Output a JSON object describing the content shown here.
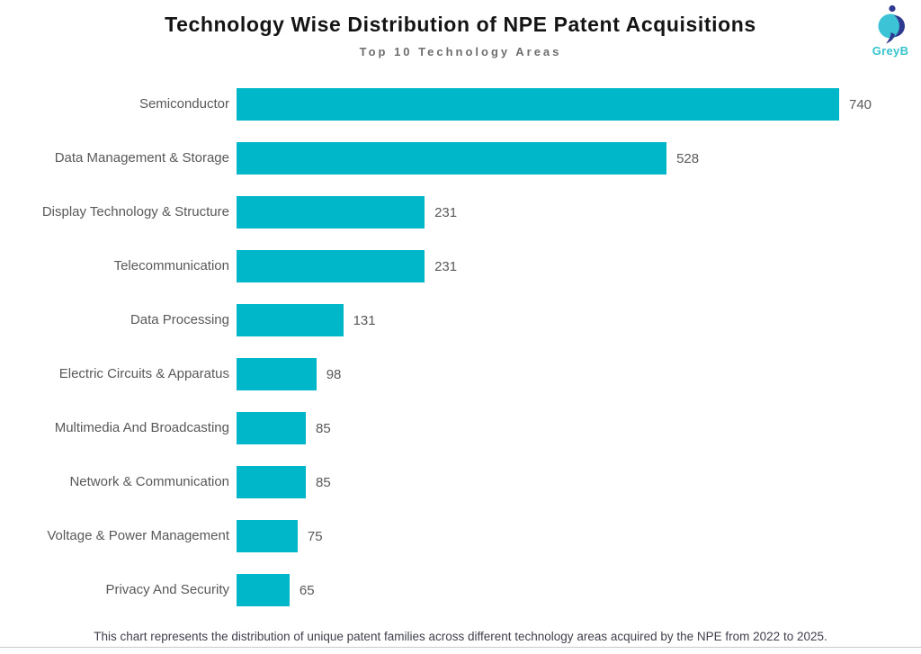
{
  "header": {
    "title": "Technology Wise Distribution of NPE Patent Acquisitions",
    "subtitle": "Top 10 Technology Areas",
    "logo_text": "GreyB"
  },
  "chart_data": {
    "type": "bar",
    "orientation": "horizontal",
    "title": "Technology Wise Distribution of NPE Patent Acquisitions",
    "subtitle": "Top 10 Technology Areas",
    "categories": [
      "Semiconductor",
      "Data Management & Storage",
      "Display Technology & Structure",
      "Telecommunication",
      "Data Processing",
      "Electric Circuits & Apparatus",
      "Multimedia And Broadcasting",
      "Network & Communication",
      "Voltage & Power Management",
      "Privacy And Security"
    ],
    "values": [
      740,
      528,
      231,
      231,
      131,
      98,
      85,
      85,
      75,
      65
    ],
    "xlabel": "",
    "ylabel": "",
    "xlim": [
      0,
      740
    ],
    "grid": false,
    "legend": false,
    "data_labels": true,
    "bar_color": "#00b7c9",
    "label_color": "#595959"
  },
  "footer": {
    "note": "This chart represents the distribution of unique patent families across different technology areas acquired by the NPE from 2022 to 2025."
  },
  "colors": {
    "accent_cyan": "#00b7c9",
    "logo_cyan": "#3cc3d5",
    "logo_navy": "#2e3a8f",
    "title_text": "#141414",
    "muted_text": "#595959"
  }
}
